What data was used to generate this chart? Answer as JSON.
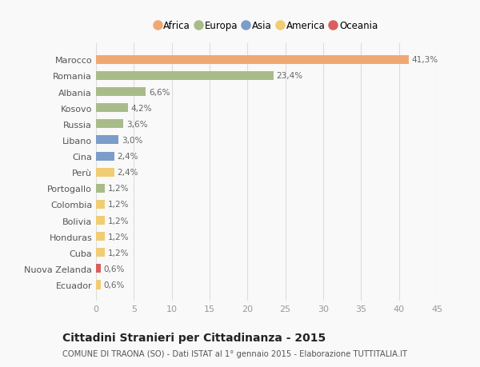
{
  "countries": [
    "Marocco",
    "Romania",
    "Albania",
    "Kosovo",
    "Russia",
    "Libano",
    "Cina",
    "Perù",
    "Portogallo",
    "Colombia",
    "Bolivia",
    "Honduras",
    "Cuba",
    "Nuova Zelanda",
    "Ecuador"
  ],
  "values": [
    41.3,
    23.4,
    6.6,
    4.2,
    3.6,
    3.0,
    2.4,
    2.4,
    1.2,
    1.2,
    1.2,
    1.2,
    1.2,
    0.6,
    0.6
  ],
  "labels": [
    "41,3%",
    "23,4%",
    "6,6%",
    "4,2%",
    "3,6%",
    "3,0%",
    "2,4%",
    "2,4%",
    "1,2%",
    "1,2%",
    "1,2%",
    "1,2%",
    "1,2%",
    "0,6%",
    "0,6%"
  ],
  "colors": [
    "#f0a872",
    "#a8bc8a",
    "#a8bc8a",
    "#a8bc8a",
    "#a8bc8a",
    "#7b9dc9",
    "#7b9dc9",
    "#f0cc72",
    "#a8bc8a",
    "#f0cc72",
    "#f0cc72",
    "#f0cc72",
    "#f0cc72",
    "#d95f5f",
    "#f0cc72"
  ],
  "continents": [
    "Africa",
    "Europa",
    "Asia",
    "America",
    "Oceania"
  ],
  "continent_colors": [
    "#f0a872",
    "#a8bc8a",
    "#7b9dc9",
    "#f0cc72",
    "#d95f5f"
  ],
  "title": "Cittadini Stranieri per Cittadinanza - 2015",
  "subtitle": "COMUNE DI TRAONA (SO) - Dati ISTAT al 1° gennaio 2015 - Elaborazione TUTTITALIA.IT",
  "xlim": [
    0,
    45
  ],
  "xticks": [
    0,
    5,
    10,
    15,
    20,
    25,
    30,
    35,
    40,
    45
  ],
  "bg_color": "#f9f9f9",
  "grid_color": "#dddddd",
  "bar_height": 0.55
}
